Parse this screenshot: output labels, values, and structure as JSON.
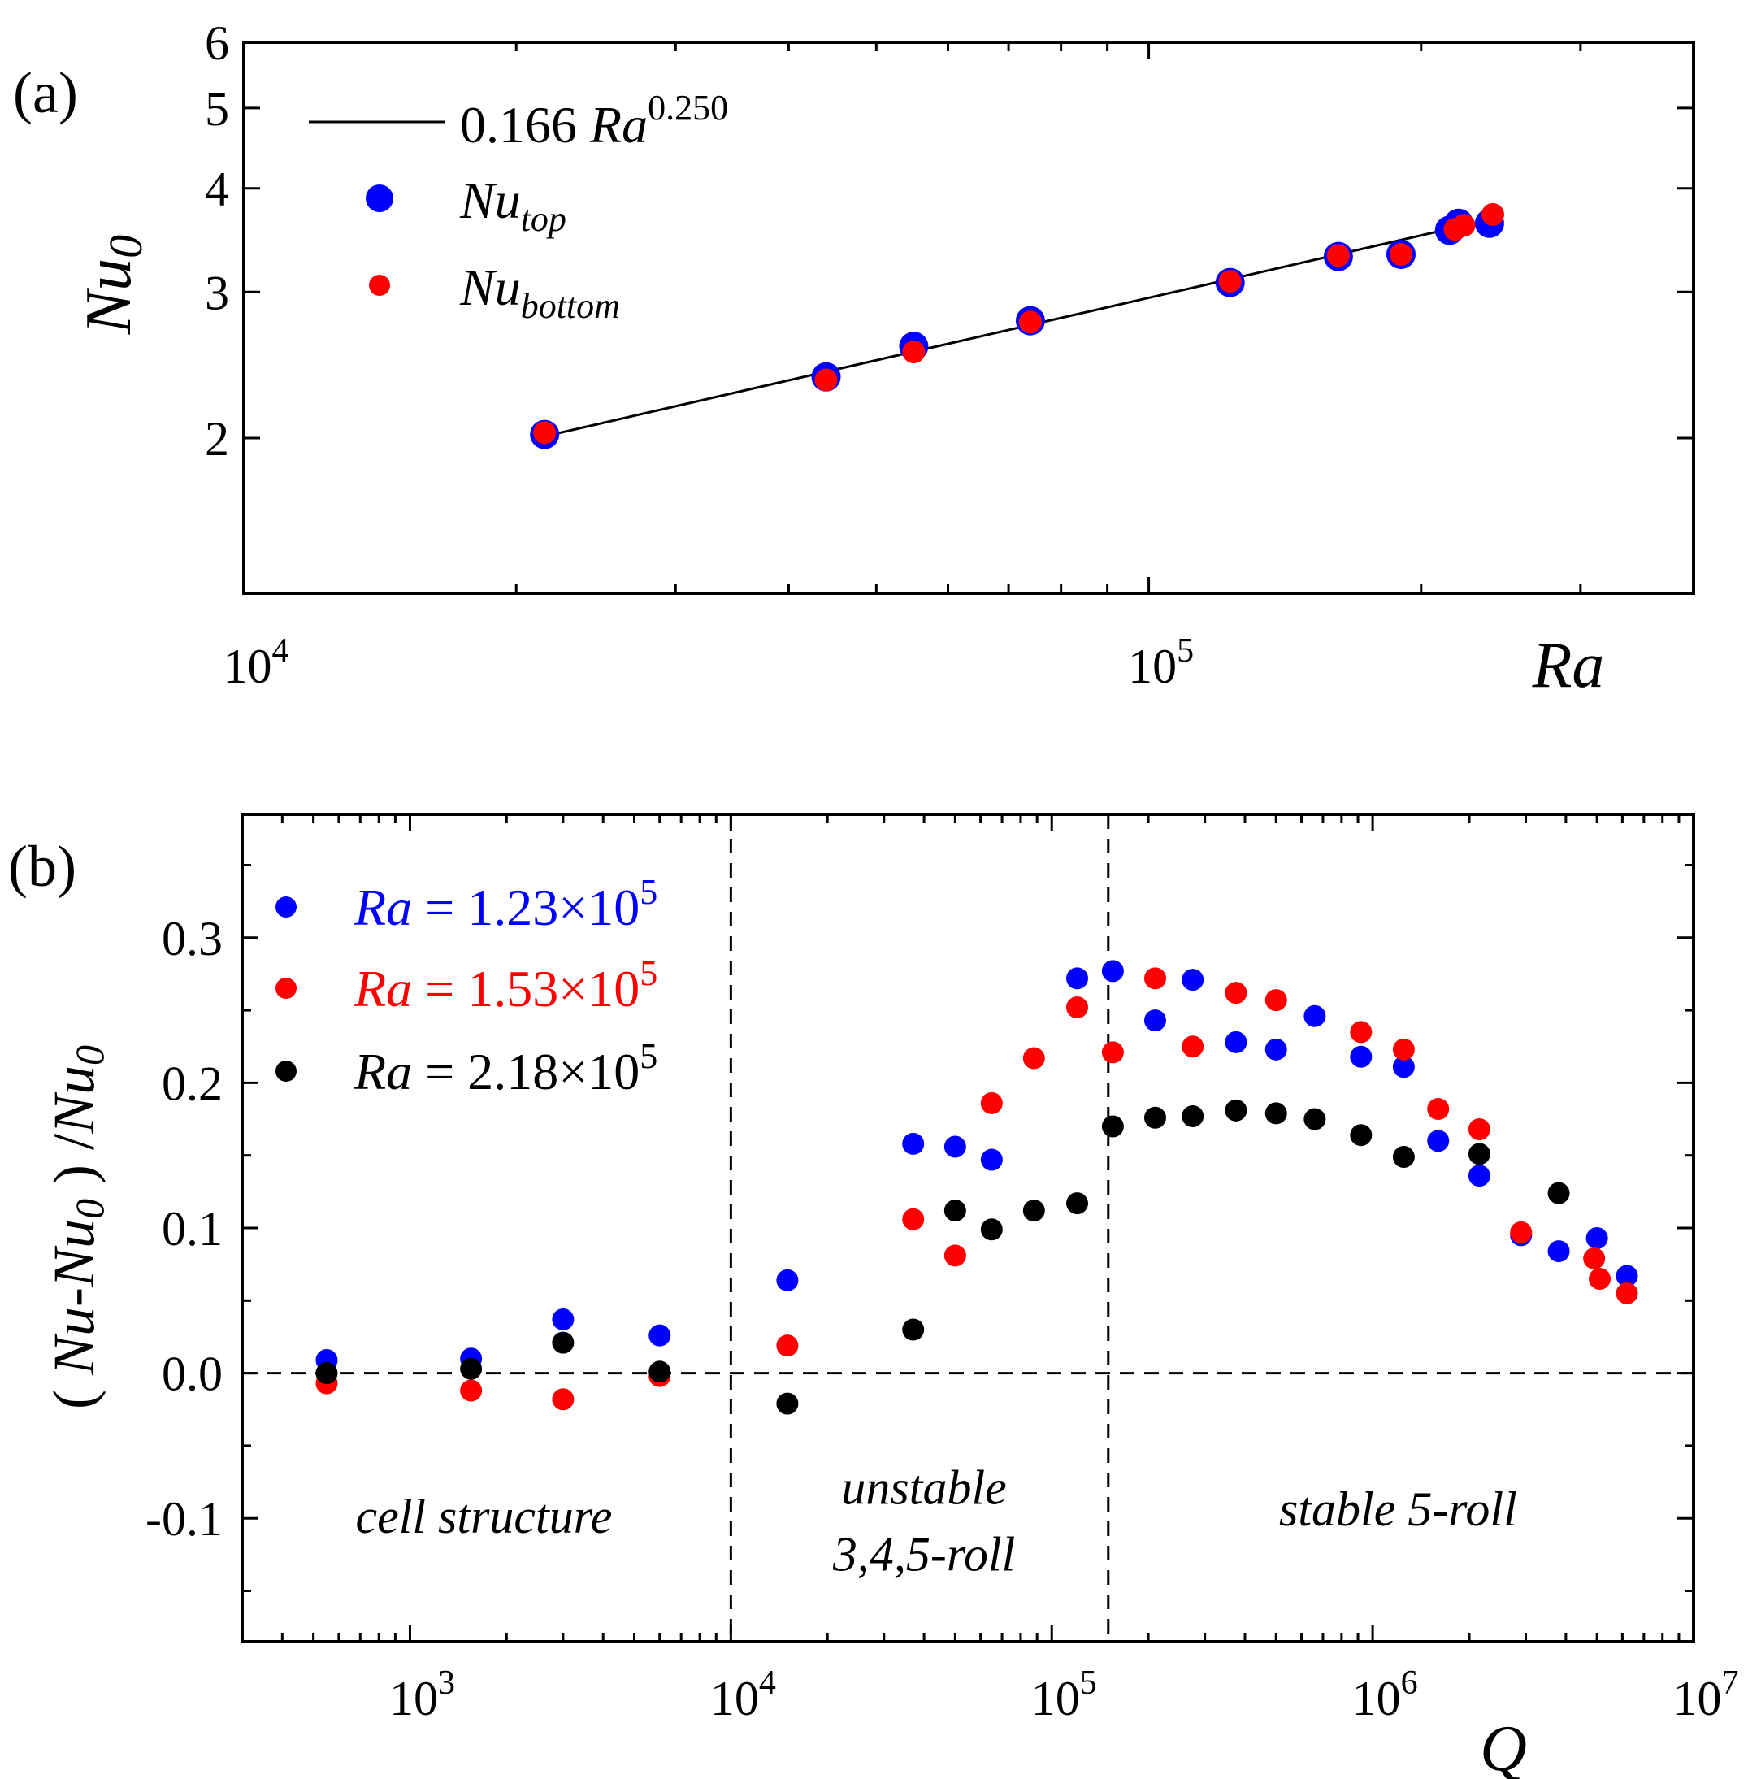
{
  "colors": {
    "blue": "#0000ff",
    "red": "#ff0000",
    "black": "#000000"
  },
  "chart_data": [
    {
      "panel_label": "(a)",
      "type": "scatter",
      "xscale": "log",
      "yscale": "log",
      "xlim": [
        10000,
        400000
      ],
      "ylim": [
        1.3,
        6
      ],
      "xlabel": "Ra",
      "ylabel": {
        "base": "Nu",
        "sub": "0"
      },
      "x_ticks": [
        {
          "value": 10000,
          "base": "10",
          "exp": "4"
        },
        {
          "value": 100000,
          "base": "10",
          "exp": "5"
        }
      ],
      "y_ticks": [
        {
          "value": 2,
          "label": "2"
        },
        {
          "value": 3,
          "label": "3"
        },
        {
          "value": 4,
          "label": "4"
        },
        {
          "value": 5,
          "label": "5"
        },
        {
          "value": 6,
          "label": "6"
        }
      ],
      "fit": {
        "label_coef": "0.166",
        "label_var": "Ra",
        "label_exp": "0.250",
        "coefficient": 0.166,
        "exponent": 0.25,
        "x_range": [
          21500,
          228000
        ]
      },
      "legend": {
        "placement": "top-left"
      },
      "series": [
        {
          "name": "Nu_top",
          "label_base": "Nu",
          "label_sub": "top",
          "color": "#0000ff",
          "x": [
            21500,
            44000,
            55000,
            74000,
            123000,
            162000,
            190000,
            215000,
            220000,
            238000
          ],
          "y": [
            2.02,
            2.37,
            2.58,
            2.77,
            3.08,
            3.31,
            3.33,
            3.56,
            3.63,
            3.63
          ]
        },
        {
          "name": "Nu_bottom",
          "label_base": "Nu",
          "label_sub": "bottom",
          "color": "#ff0000",
          "x": [
            21500,
            44000,
            55000,
            74000,
            123000,
            162000,
            190000,
            218000,
            223000,
            240000
          ],
          "y": [
            2.03,
            2.35,
            2.54,
            2.76,
            3.09,
            3.32,
            3.33,
            3.57,
            3.61,
            3.72
          ]
        }
      ]
    },
    {
      "panel_label": "(b)",
      "type": "scatter",
      "xscale": "log",
      "xlim": [
        300,
        10000000
      ],
      "ylim": [
        -0.185,
        0.385
      ],
      "xlabel": "Q",
      "ylabel": {
        "open": "( ",
        "a": "Nu",
        "mid": "-",
        "b": "Nu",
        "sub": "0",
        "close": " )",
        "slash": " /",
        "c": "Nu",
        "sub2": "0"
      },
      "x_ticks": [
        {
          "value": 1000,
          "base": "10",
          "exp": "3"
        },
        {
          "value": 10000,
          "base": "10",
          "exp": "4"
        },
        {
          "value": 100000,
          "base": "10",
          "exp": "5"
        },
        {
          "value": 1000000,
          "base": "10",
          "exp": "6"
        },
        {
          "value": 10000000,
          "base": "10",
          "exp": "7"
        }
      ],
      "y_ticks": [
        {
          "value": -0.1,
          "label": "-0.1"
        },
        {
          "value": 0.0,
          "label": "0.0"
        },
        {
          "value": 0.1,
          "label": "0.1"
        },
        {
          "value": 0.2,
          "label": "0.2"
        },
        {
          "value": 0.3,
          "label": "0.3"
        }
      ],
      "reference_lines": {
        "horizontal_y": 0,
        "vertical_x": [
          10000,
          150000
        ]
      },
      "regions": [
        {
          "lines": [
            "cell structure"
          ],
          "x_center": 1700,
          "y": -0.11
        },
        {
          "lines": [
            "unstable",
            "3,4,5-roll"
          ],
          "x_center": 40000,
          "y": -0.09
        },
        {
          "lines": [
            "stable 5-roll"
          ],
          "x_center": 1200000,
          "y": -0.105
        }
      ],
      "legend": {
        "placement": "top-left"
      },
      "series": [
        {
          "name": "Ra = 1.23×10^5",
          "label_var": "Ra",
          "label_text": " = 1.23×10",
          "label_exp": "5",
          "color": "#0000ff",
          "x": [
            550,
            1550,
            3000,
            6000,
            15000,
            37000,
            50000,
            65000,
            120000,
            155000,
            210000,
            275000,
            375000,
            500000,
            660000,
            920000,
            1250000,
            1600000,
            2150000,
            2900000,
            3800000,
            5000000,
            6200000
          ],
          "y": [
            0.009,
            0.01,
            0.037,
            0.026,
            0.064,
            0.158,
            0.156,
            0.147,
            0.272,
            0.277,
            0.243,
            0.271,
            0.228,
            0.223,
            0.246,
            0.218,
            0.211,
            0.16,
            0.136,
            0.095,
            0.084,
            0.093,
            0.067
          ]
        },
        {
          "name": "Ra = 1.53×10^5",
          "label_var": "Ra",
          "label_text": " = 1.53×10",
          "label_exp": "5",
          "color": "#ff0000",
          "x": [
            550,
            1550,
            3000,
            6000,
            15000,
            37000,
            50000,
            65000,
            88000,
            120000,
            155000,
            210000,
            275000,
            375000,
            500000,
            920000,
            1250000,
            1600000,
            2150000,
            2900000,
            4900000,
            5100000,
            6200000
          ],
          "y": [
            -0.007,
            -0.012,
            -0.018,
            -0.002,
            0.019,
            0.106,
            0.081,
            0.186,
            0.217,
            0.252,
            0.221,
            0.272,
            0.225,
            0.262,
            0.257,
            0.235,
            0.223,
            0.182,
            0.168,
            0.097,
            0.079,
            0.065,
            0.055
          ]
        },
        {
          "name": "Ra = 2.18×10^5",
          "label_var": "Ra",
          "label_text": " = 2.18×10",
          "label_exp": "5",
          "color": "#000000",
          "x": [
            550,
            1550,
            3000,
            6000,
            15000,
            37000,
            50000,
            65000,
            88000,
            120000,
            155000,
            210000,
            275000,
            375000,
            500000,
            660000,
            920000,
            1250000,
            2150000,
            3800000
          ],
          "y": [
            0.0,
            0.003,
            0.021,
            0.001,
            -0.021,
            0.03,
            0.112,
            0.099,
            0.112,
            0.117,
            0.17,
            0.176,
            0.177,
            0.181,
            0.179,
            0.175,
            0.164,
            0.149,
            0.151,
            0.124
          ]
        }
      ]
    }
  ]
}
